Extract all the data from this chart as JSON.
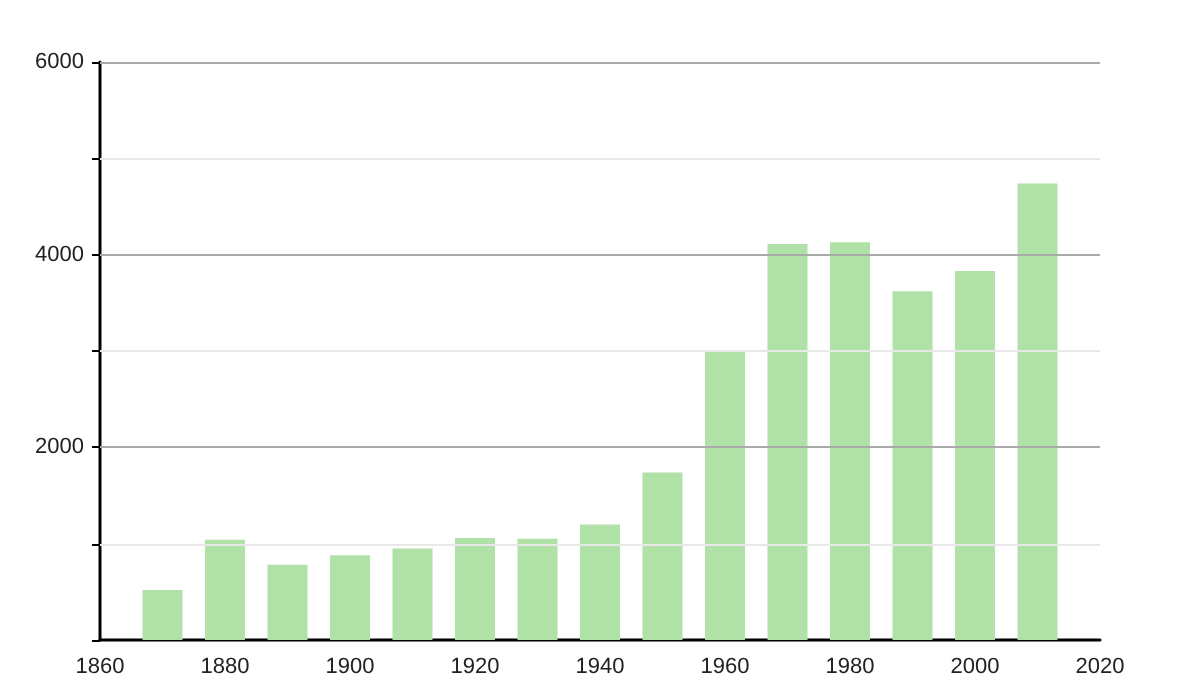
{
  "chart_data": {
    "type": "bar",
    "x": [
      1870,
      1880,
      1890,
      1900,
      1910,
      1920,
      1930,
      1940,
      1950,
      1960,
      1970,
      1980,
      1990,
      2000,
      2010
    ],
    "values": [
      520,
      1040,
      780,
      880,
      950,
      1060,
      1050,
      1200,
      1740,
      3000,
      4110,
      4130,
      3620,
      3830,
      4740
    ],
    "color": "#b0e2a8",
    "xlim": [
      1860,
      2020
    ],
    "xticks": [
      1860,
      1880,
      1900,
      1920,
      1940,
      1960,
      1980,
      2000,
      2020
    ],
    "ylim": [
      0,
      6000
    ],
    "yticks": [
      {
        "value": 0,
        "label": null
      },
      {
        "value": 1000,
        "label": null
      },
      2000,
      {
        "value": 3000,
        "label": null
      },
      4000,
      {
        "value": 5000,
        "label": null
      },
      6000
    ],
    "grid": "y"
  }
}
